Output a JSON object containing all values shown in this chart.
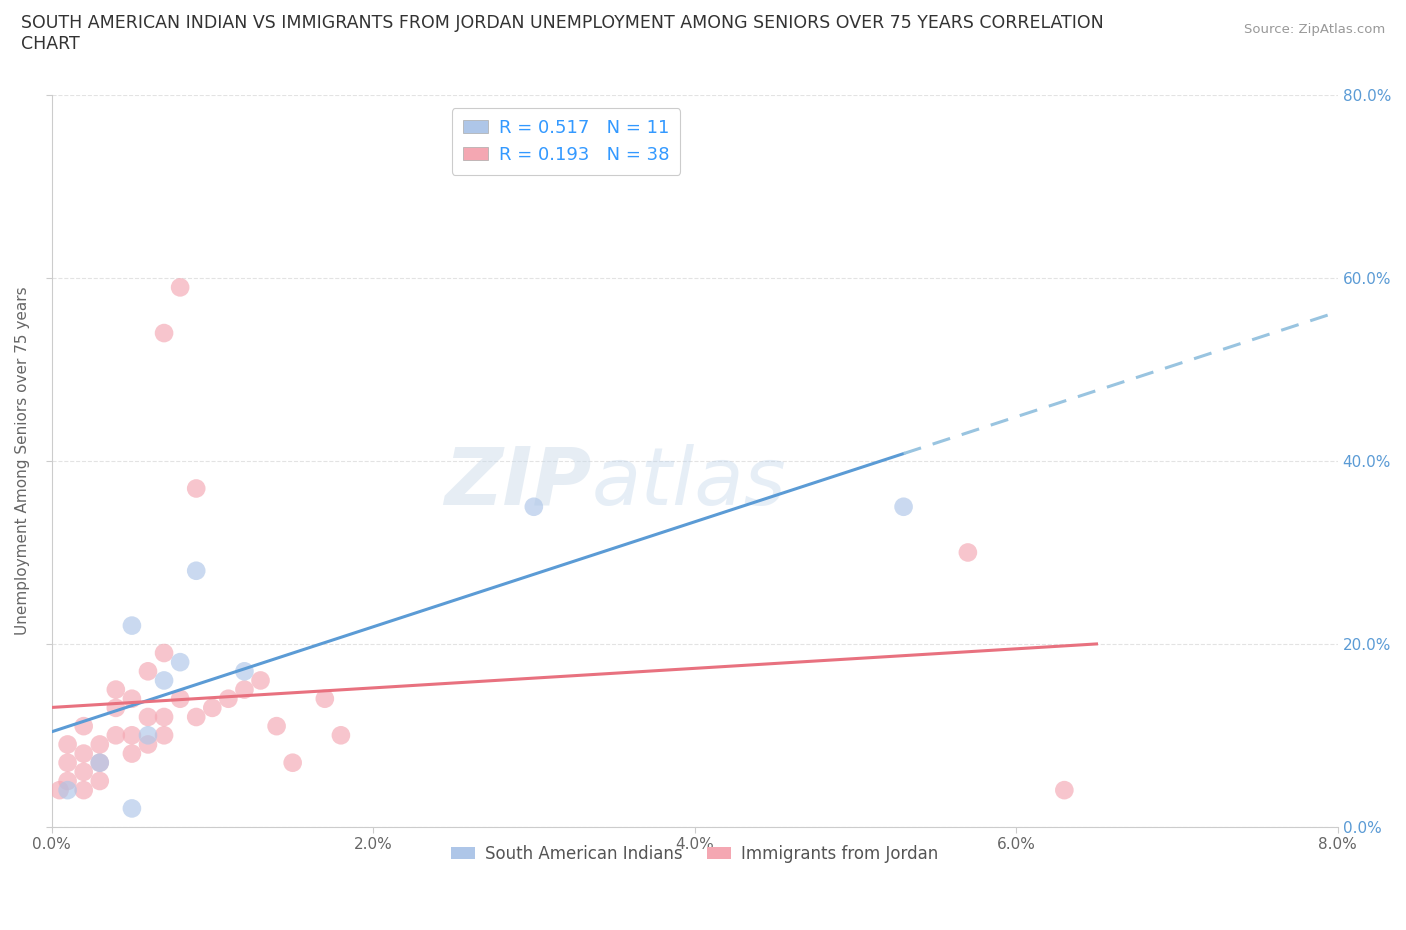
{
  "title": "SOUTH AMERICAN INDIAN VS IMMIGRANTS FROM JORDAN UNEMPLOYMENT AMONG SENIORS OVER 75 YEARS CORRELATION\nCHART",
  "source_text": "Source: ZipAtlas.com",
  "ylabel": "Unemployment Among Seniors over 75 years",
  "blue_label": "South American Indians",
  "pink_label": "Immigrants from Jordan",
  "blue_R": "0.517",
  "blue_N": "11",
  "pink_R": "0.193",
  "pink_N": "38",
  "blue_color": "#aec6e8",
  "pink_color": "#f4a7b2",
  "blue_line_color": "#5b9bd5",
  "pink_line_color": "#e8717f",
  "dashed_line_color": "#99c4e0",
  "xlim": [
    0.0,
    0.08
  ],
  "ylim": [
    0.0,
    0.8
  ],
  "xticks": [
    0.0,
    0.02,
    0.04,
    0.06,
    0.08
  ],
  "yticks": [
    0.0,
    0.2,
    0.4,
    0.6,
    0.8
  ],
  "xticklabels": [
    "0.0%",
    "2.0%",
    "4.0%",
    "6.0%",
    "8.0%"
  ],
  "yticklabels": [
    "0.0%",
    "20.0%",
    "40.0%",
    "60.0%",
    "80.0%"
  ],
  "blue_scatter_x": [
    0.001,
    0.003,
    0.005,
    0.005,
    0.006,
    0.007,
    0.008,
    0.009,
    0.012,
    0.03,
    0.053
  ],
  "blue_scatter_y": [
    0.04,
    0.07,
    0.22,
    0.02,
    0.1,
    0.16,
    0.18,
    0.28,
    0.17,
    0.35,
    0.35
  ],
  "pink_scatter_x": [
    0.0005,
    0.001,
    0.001,
    0.001,
    0.002,
    0.002,
    0.002,
    0.002,
    0.003,
    0.003,
    0.003,
    0.004,
    0.004,
    0.004,
    0.005,
    0.005,
    0.005,
    0.006,
    0.006,
    0.006,
    0.007,
    0.007,
    0.007,
    0.007,
    0.008,
    0.008,
    0.009,
    0.009,
    0.01,
    0.011,
    0.012,
    0.013,
    0.014,
    0.015,
    0.017,
    0.018,
    0.057,
    0.063
  ],
  "pink_scatter_y": [
    0.04,
    0.05,
    0.07,
    0.09,
    0.04,
    0.06,
    0.08,
    0.11,
    0.05,
    0.07,
    0.09,
    0.1,
    0.13,
    0.15,
    0.08,
    0.1,
    0.14,
    0.09,
    0.12,
    0.17,
    0.1,
    0.12,
    0.19,
    0.54,
    0.14,
    0.59,
    0.12,
    0.37,
    0.13,
    0.14,
    0.15,
    0.16,
    0.11,
    0.07,
    0.14,
    0.1,
    0.3,
    0.04
  ],
  "watermark_zip": "ZIP",
  "watermark_atlas": "atlas",
  "bg_color": "#ffffff",
  "grid_color": "#dddddd",
  "right_tick_color": "#5b9bd5",
  "left_tick_color": "#888888"
}
